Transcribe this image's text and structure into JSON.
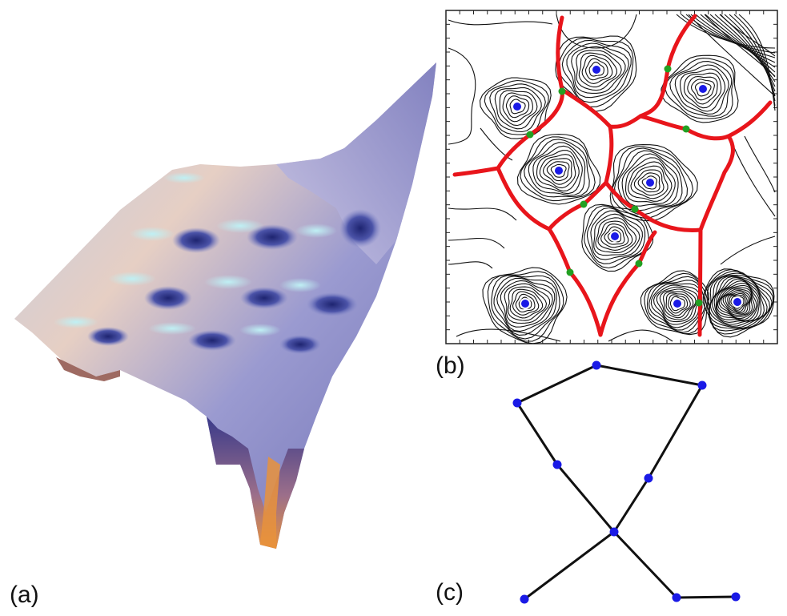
{
  "figure": {
    "panels": [
      {
        "id": "a",
        "label": "(a)",
        "kind": "3d-energy-surface"
      },
      {
        "id": "b",
        "label": "(b)",
        "kind": "contour-map-with-basin-boundaries"
      },
      {
        "id": "c",
        "label": "(c)",
        "kind": "basin-connectivity-graph"
      }
    ]
  },
  "colors": {
    "contour_line": "#111111",
    "basin_boundary": "#e8151b",
    "minimum_marker": "#1a1ae6",
    "saddle_marker": "#22a022",
    "graph_edge": "#111111",
    "graph_node": "#1a1ae6",
    "surface_peak": "#8f8fc8",
    "surface_highlight": "#aee6f0",
    "surface_warm": "#e9d2c0",
    "surface_deep": "#1e2470",
    "surface_cliff": "#e8923c"
  },
  "legend_icons": {
    "minimum": "filled-circle-blue",
    "saddle": "filled-circle-green"
  }
}
